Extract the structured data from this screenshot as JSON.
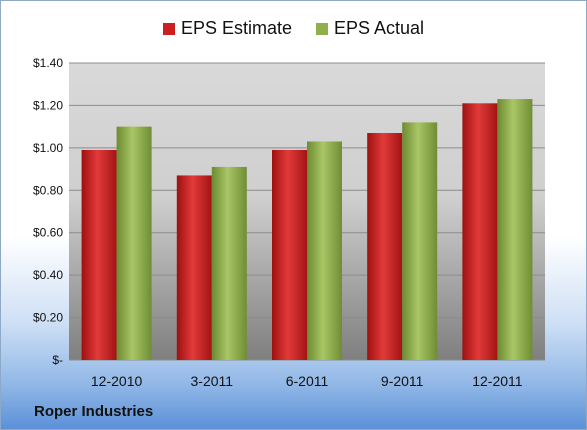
{
  "chart_data": {
    "type": "bar",
    "categories": [
      "12-2010",
      "3-2011",
      "6-2011",
      "9-2011",
      "12-2011"
    ],
    "series": [
      {
        "name": "EPS Estimate",
        "values": [
          0.99,
          0.87,
          0.99,
          1.07,
          1.21
        ],
        "color": "#cc1f1f"
      },
      {
        "name": "EPS Actual",
        "values": [
          1.1,
          0.91,
          1.03,
          1.12,
          1.23
        ],
        "color": "#8fb04a"
      }
    ],
    "ylim": [
      0,
      1.4
    ],
    "yticks": [
      0,
      0.2,
      0.4,
      0.6,
      0.8,
      1.0,
      1.2,
      1.4
    ],
    "ytick_labels": [
      "$-",
      "$0.20",
      "$0.40",
      "$0.60",
      "$0.80",
      "$1.00",
      "$1.20",
      "$1.40"
    ],
    "grid": true,
    "legend_position": "top"
  },
  "company": "Roper Industries"
}
